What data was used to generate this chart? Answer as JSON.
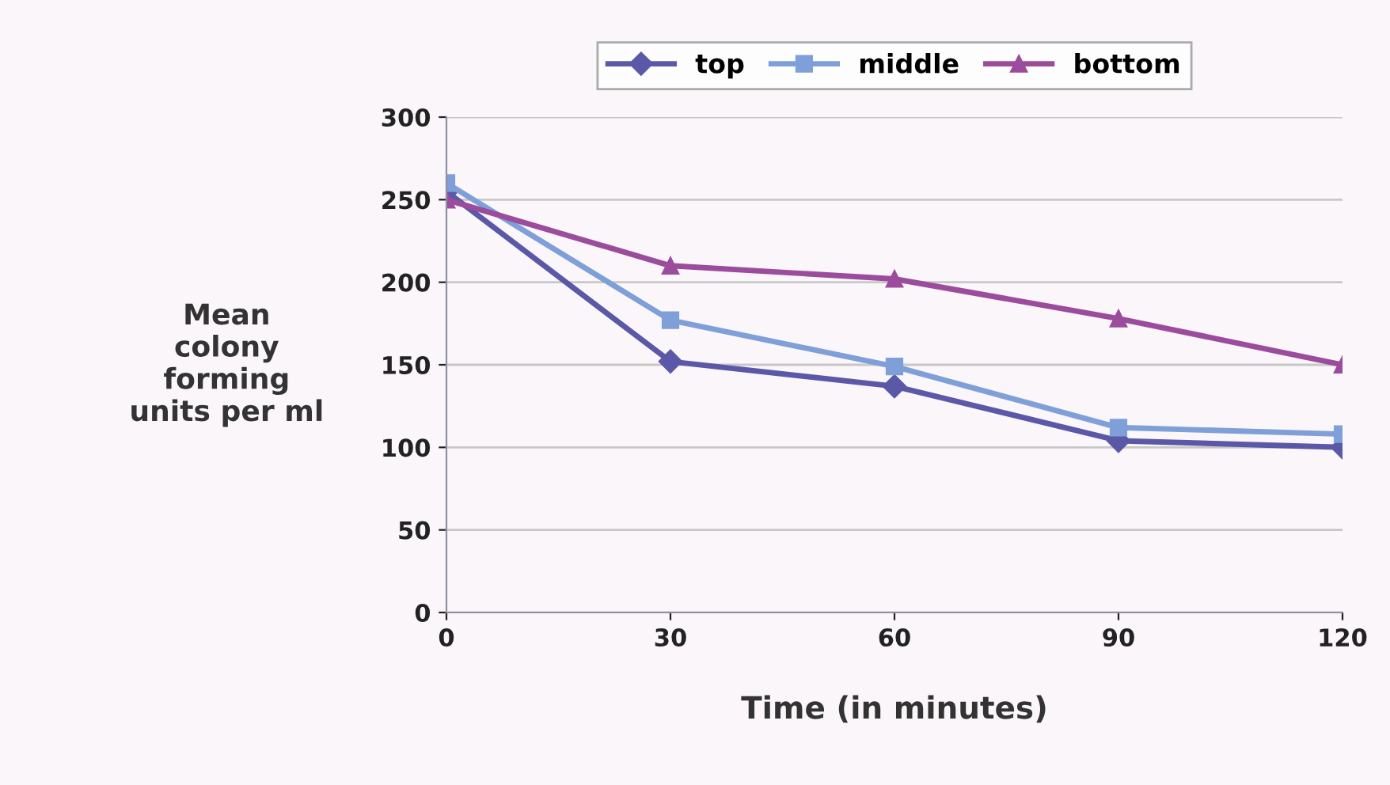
{
  "chart_data": {
    "type": "line",
    "xlabel": "Time (in minutes)",
    "ylabel": "Mean\ncolony\nforming\nunits per ml",
    "x": [
      0,
      30,
      60,
      90,
      120
    ],
    "series": [
      {
        "name": "top",
        "color": "#5b58a8",
        "marker": "diamond",
        "values": [
          255,
          152,
          137,
          104,
          100
        ]
      },
      {
        "name": "middle",
        "color": "#7f9fd8",
        "marker": "square",
        "values": [
          260,
          177,
          149,
          112,
          108
        ]
      },
      {
        "name": "bottom",
        "color": "#9b4c9c",
        "marker": "triangle",
        "values": [
          250,
          210,
          202,
          178,
          150
        ]
      }
    ],
    "xlim": [
      0,
      120
    ],
    "xticks": [
      0,
      30,
      60,
      90,
      120
    ],
    "ylim": [
      0,
      300
    ],
    "yticks": [
      0,
      50,
      100,
      150,
      200,
      250,
      300
    ],
    "grid": "y",
    "legend": "top",
    "line_style": "solid"
  }
}
